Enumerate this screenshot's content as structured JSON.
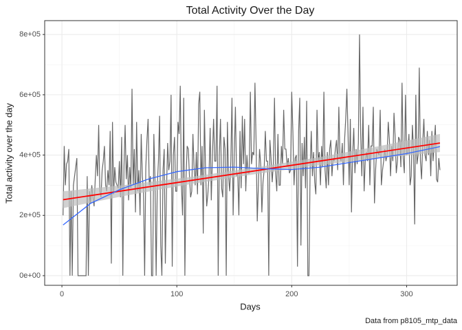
{
  "chart_data": {
    "type": "line",
    "title": "Total Activity Over the Day",
    "x_label": "Days",
    "y_label": "Total activity over the day",
    "caption": "Data from p8105_mtp_data",
    "xlim": [
      -15,
      344
    ],
    "ylim": [
      -32000,
      846000
    ],
    "xticks": [
      0,
      100,
      200,
      300
    ],
    "x_minor_ticks": [
      50,
      150,
      250
    ],
    "yticks": [
      {
        "value": 0,
        "label": "0e+00"
      },
      {
        "value": 200000,
        "label": "2e+05"
      },
      {
        "value": 400000,
        "label": "4e+05"
      },
      {
        "value": 600000,
        "label": "6e+05"
      },
      {
        "value": 800000,
        "label": "8e+05"
      }
    ],
    "y_minor_ticks": [
      100000,
      300000,
      500000,
      700000
    ],
    "grid": true,
    "color": "#666666",
    "x": [
      1,
      2,
      3,
      4,
      5,
      6,
      7,
      8,
      9,
      10,
      11,
      12,
      13,
      14,
      15,
      16,
      17,
      18,
      19,
      20,
      21,
      22,
      23,
      24,
      25,
      26,
      27,
      28,
      29,
      30,
      31,
      32,
      33,
      34,
      35,
      36,
      37,
      38,
      39,
      40,
      41,
      42,
      43,
      44,
      45,
      46,
      47,
      48,
      49,
      50,
      51,
      52,
      53,
      54,
      55,
      56,
      57,
      58,
      59,
      60,
      61,
      62,
      63,
      64,
      65,
      66,
      67,
      68,
      69,
      70,
      71,
      72,
      73,
      74,
      75,
      76,
      77,
      78,
      79,
      80,
      81,
      82,
      83,
      84,
      85,
      86,
      87,
      88,
      89,
      90,
      91,
      92,
      93,
      94,
      95,
      96,
      97,
      98,
      99,
      100,
      101,
      102,
      103,
      104,
      105,
      106,
      107,
      108,
      109,
      110,
      111,
      112,
      113,
      114,
      115,
      116,
      117,
      118,
      119,
      120,
      121,
      122,
      123,
      124,
      125,
      126,
      127,
      128,
      129,
      130,
      131,
      132,
      133,
      134,
      135,
      136,
      137,
      138,
      139,
      140,
      141,
      142,
      143,
      144,
      145,
      146,
      147,
      148,
      149,
      150,
      151,
      152,
      153,
      154,
      155,
      156,
      157,
      158,
      159,
      160,
      161,
      162,
      163,
      164,
      165,
      166,
      167,
      168,
      169,
      170,
      171,
      172,
      173,
      174,
      175,
      176,
      177,
      178,
      179,
      180,
      181,
      182,
      183,
      184,
      185,
      186,
      187,
      188,
      189,
      190,
      191,
      192,
      193,
      194,
      195,
      196,
      197,
      198,
      199,
      200,
      201,
      202,
      203,
      204,
      205,
      206,
      207,
      208,
      209,
      210,
      211,
      212,
      213,
      214,
      215,
      216,
      217,
      218,
      219,
      220,
      221,
      222,
      223,
      224,
      225,
      226,
      227,
      228,
      229,
      230,
      231,
      232,
      233,
      234,
      235,
      236,
      237,
      238,
      239,
      240,
      241,
      242,
      243,
      244,
      245,
      246,
      247,
      248,
      249,
      250,
      251,
      252,
      253,
      254,
      255,
      256,
      257,
      258,
      259,
      260,
      261,
      262,
      263,
      264,
      265,
      266,
      267,
      268,
      269,
      270,
      271,
      272,
      273,
      274,
      275,
      276,
      277,
      278,
      279,
      280,
      281,
      282,
      283,
      284,
      285,
      286,
      287,
      288,
      289,
      290,
      291,
      292,
      293,
      294,
      295,
      296,
      297,
      298,
      299,
      300,
      301,
      302,
      303,
      304,
      305,
      306,
      307,
      308,
      309,
      310,
      311,
      312,
      313,
      314,
      315,
      316,
      317,
      318,
      319,
      320,
      321,
      322,
      323,
      324,
      325,
      326,
      327,
      328,
      329
    ],
    "values": [
      200000,
      430000,
      300000,
      370000,
      380000,
      420000,
      0,
      280000,
      0,
      300000,
      330000,
      360000,
      390000,
      0,
      0,
      0,
      0,
      0,
      0,
      0,
      0,
      330000,
      0,
      280000,
      240000,
      300000,
      260000,
      230000,
      320000,
      400000,
      330000,
      500000,
      280000,
      260000,
      350000,
      380000,
      430000,
      300000,
      280000,
      350000,
      300000,
      480000,
      40000,
      510000,
      270000,
      360000,
      310000,
      300000,
      290000,
      380000,
      260000,
      460000,
      0,
      360000,
      500000,
      320000,
      400000,
      250000,
      360000,
      290000,
      620000,
      300000,
      420000,
      210000,
      510000,
      280000,
      350000,
      200000,
      470000,
      330000,
      280000,
      0,
      360000,
      450000,
      520000,
      300000,
      330000,
      0,
      0,
      470000,
      320000,
      0,
      300000,
      380000,
      530000,
      100000,
      0,
      350000,
      420000,
      40000,
      280000,
      440000,
      350000,
      380000,
      600000,
      30000,
      400000,
      460000,
      280000,
      280000,
      510000,
      470000,
      630000,
      300000,
      200000,
      590000,
      0,
      320000,
      430000,
      420000,
      330000,
      260000,
      280000,
      470000,
      360000,
      300000,
      410000,
      270000,
      570000,
      610000,
      300000,
      430000,
      140000,
      550000,
      350000,
      230000,
      270000,
      330000,
      490000,
      250000,
      400000,
      520000,
      380000,
      380000,
      630000,
      0,
      400000,
      520000,
      290000,
      260000,
      460000,
      420000,
      0,
      510000,
      330000,
      280000,
      380000,
      590000,
      200000,
      400000,
      560000,
      330000,
      340000,
      200000,
      480000,
      290000,
      530000,
      370000,
      520000,
      280000,
      400000,
      340000,
      340000,
      610000,
      370000,
      410000,
      400000,
      640000,
      440000,
      180000,
      300000,
      420000,
      370000,
      210000,
      310000,
      350000,
      480000,
      380000,
      380000,
      0,
      450000,
      390000,
      310000,
      370000,
      590000,
      340000,
      280000,
      470000,
      300000,
      300000,
      430000,
      370000,
      550000,
      420000,
      420000,
      360000,
      390000,
      340000,
      350000,
      610000,
      480000,
      300000,
      390000,
      400000,
      30000,
      480000,
      590000,
      100000,
      440000,
      330000,
      460000,
      290000,
      580000,
      0,
      0,
      350000,
      480000,
      330000,
      410000,
      310000,
      270000,
      550000,
      380000,
      410000,
      300000,
      430000,
      360000,
      610000,
      350000,
      290000,
      410000,
      300000,
      420000,
      450000,
      330000,
      390000,
      380000,
      420000,
      450000,
      350000,
      560000,
      390000,
      380000,
      440000,
      300000,
      450000,
      520000,
      620000,
      470000,
      300000,
      520000,
      210000,
      400000,
      490000,
      340000,
      420000,
      370000,
      440000,
      800000,
      470000,
      330000,
      560000,
      280000,
      380000,
      410000,
      380000,
      500000,
      300000,
      430000,
      430000,
      560000,
      240000,
      350000,
      420000,
      410000,
      400000,
      550000,
      300000,
      350000,
      380000,
      420000,
      380000,
      400000,
      510000,
      450000,
      330000,
      430000,
      380000,
      540000,
      460000,
      340000,
      380000,
      460000,
      450000,
      360000,
      640000,
      390000,
      340000,
      600000,
      400000,
      410000,
      470000,
      300000,
      330000,
      500000,
      420000,
      170000,
      600000,
      370000,
      400000,
      690000,
      380000,
      320000,
      440000,
      520000,
      400000,
      380000,
      480000,
      400000,
      450000,
      330000,
      480000,
      380000,
      440000,
      500000,
      320000,
      310000,
      390000,
      350000
    ],
    "linear_fit": {
      "x": [
        1,
        329
      ],
      "values": [
        252000,
        440000
      ],
      "color": "#ff0000",
      "band_x": [
        1,
        55,
        110,
        165,
        220,
        275,
        329
      ],
      "band_lower": [
        224000,
        265000,
        302500,
        335000,
        364500,
        389000,
        410000
      ],
      "band_upper": [
        280000,
        301000,
        326500,
        357000,
        390500,
        429000,
        470000
      ],
      "band_color": "#bebebe"
    },
    "loess_fit": {
      "x": [
        1,
        25,
        50,
        75,
        100,
        125,
        150,
        175,
        200,
        225,
        250,
        275,
        300,
        329
      ],
      "values": [
        168000,
        240000,
        285000,
        320000,
        345000,
        358000,
        360000,
        355000,
        352000,
        360000,
        375000,
        390000,
        405000,
        428000
      ],
      "color": "#3366ff"
    }
  }
}
